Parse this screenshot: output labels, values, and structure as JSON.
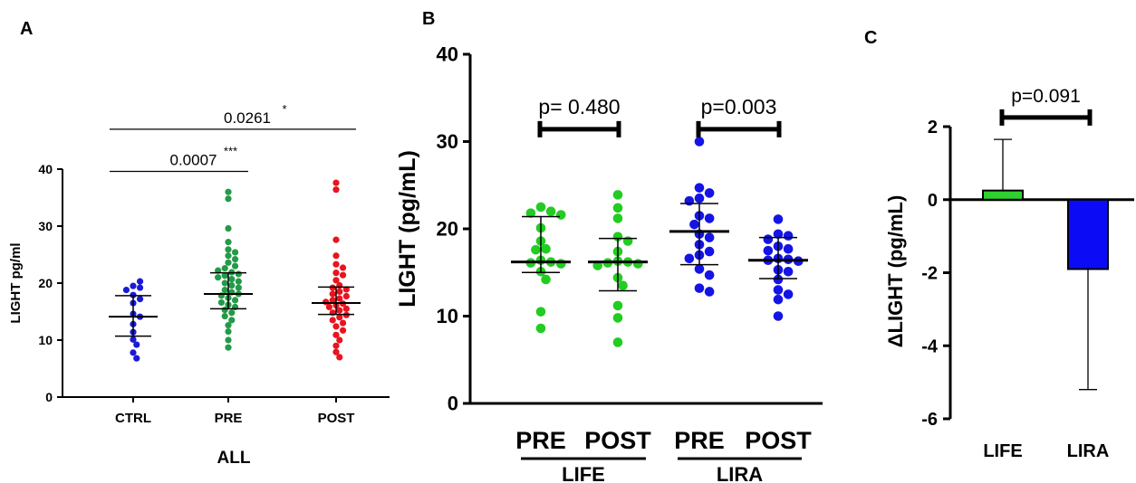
{
  "chart_data": [
    {
      "panel": "A",
      "type": "scatter",
      "xlabel": "ALL",
      "ylabel": "LIGHT pg/ml",
      "ylim": [
        0,
        40
      ],
      "yticks": [
        "0",
        "10",
        "20",
        "30",
        "40"
      ],
      "categories": [
        "CTRL",
        "PRE",
        "POST"
      ],
      "colors": [
        "#1a1ad6",
        "#239a48",
        "#e8141e"
      ],
      "series": [
        {
          "values": [
            19.5,
            20.3,
            19.2,
            18.8,
            17.9,
            17.2,
            16.5,
            14.6,
            14.1,
            12.8,
            11.4,
            10.1,
            9.2,
            7.8,
            6.8
          ],
          "median": 14.1,
          "iqr": [
            10.7,
            17.8
          ]
        },
        {
          "values": [
            36.0,
            34.8,
            29.6,
            27.2,
            25.9,
            25.4,
            24.8,
            24.2,
            23.6,
            23.0,
            22.6,
            22.2,
            21.9,
            21.6,
            21.3,
            21.0,
            20.7,
            20.3,
            20.0,
            19.6,
            19.2,
            18.8,
            18.4,
            18.1,
            17.8,
            17.4,
            17.0,
            16.6,
            16.2,
            15.8,
            15.3,
            14.8,
            14.2,
            13.5,
            12.6,
            11.5,
            10.0,
            8.7
          ],
          "median": 18.1,
          "iqr": [
            15.5,
            21.8
          ]
        },
        {
          "values": [
            37.6,
            36.4,
            27.6,
            24.8,
            23.3,
            22.7,
            21.8,
            21.4,
            20.5,
            19.6,
            19.2,
            18.9,
            18.5,
            18.1,
            17.7,
            17.3,
            17.0,
            16.7,
            16.4,
            16.1,
            15.8,
            15.5,
            15.2,
            14.8,
            14.4,
            14.0,
            13.5,
            13.0,
            12.4,
            11.7,
            10.9,
            10.0,
            9.0,
            7.9,
            7.0
          ],
          "median": 16.5,
          "iqr": [
            14.5,
            19.3
          ]
        }
      ],
      "annotations": [
        {
          "text": "0.0007",
          "star": "***",
          "from": 0,
          "to": 1,
          "y": 39.6
        },
        {
          "text": "0.0261",
          "star": "*",
          "from": 0,
          "to": 2,
          "y": 47.0
        }
      ]
    },
    {
      "panel": "B",
      "type": "scatter",
      "ylabel": "LIGHT (pg/mL)",
      "ylim": [
        0,
        40
      ],
      "yticks": [
        "0",
        "10",
        "20",
        "30",
        "40"
      ],
      "categories": [
        "PRE",
        "POST",
        "PRE",
        "POST"
      ],
      "groups": [
        "LIFE",
        "LIRA"
      ],
      "colors": [
        "#22cc22",
        "#22cc22",
        "#1414e6",
        "#1414e6"
      ],
      "series": [
        {
          "values": [
            22.5,
            22.0,
            21.8,
            21.6,
            20.1,
            18.6,
            17.7,
            17.6,
            16.4,
            16.2,
            16.1,
            16.0,
            15.1,
            14.2,
            10.5,
            8.6
          ],
          "median": 16.2,
          "iqr": [
            15.0,
            21.4
          ]
        },
        {
          "values": [
            23.9,
            22.4,
            21.2,
            19.1,
            18.6,
            17.4,
            16.3,
            16.2,
            16.1,
            16.0,
            15.8,
            14.4,
            13.5,
            11.2,
            9.8,
            7.0
          ],
          "median": 16.2,
          "iqr": [
            12.9,
            18.9
          ]
        },
        {
          "values": [
            30.0,
            24.7,
            24.1,
            23.5,
            23.2,
            21.5,
            21.2,
            20.5,
            19.4,
            19.0,
            18.2,
            17.4,
            17.0,
            16.6,
            15.4,
            14.7,
            13.2,
            12.8
          ],
          "median": 19.7,
          "iqr": [
            15.9,
            22.9
          ]
        },
        {
          "values": [
            21.1,
            19.4,
            19.2,
            18.8,
            18.0,
            17.7,
            17.5,
            16.6,
            16.5,
            16.4,
            16.3,
            15.3,
            15.1,
            14.2,
            13.0,
            12.5,
            11.9,
            10.0
          ],
          "median": 16.4,
          "iqr": [
            14.3,
            19.0
          ]
        }
      ],
      "annotations": [
        {
          "text": "p= 0.480",
          "from": 0,
          "to": 1,
          "y": 31.0
        },
        {
          "text": "p=0.003",
          "from": 2,
          "to": 3,
          "y": 31.0
        }
      ]
    },
    {
      "panel": "C",
      "type": "bar",
      "ylabel": "ΔLIGHT (pg/mL)",
      "ylim": [
        -6,
        2
      ],
      "yticks": [
        "2",
        "0",
        "-2",
        "-4",
        "-6"
      ],
      "categories": [
        "LIFE",
        "LIRA"
      ],
      "values": [
        0.25,
        -1.9
      ],
      "error": [
        1.4,
        3.3
      ],
      "colors": [
        "#2ed12e",
        "#0b0bf5"
      ],
      "annotation": {
        "text": "p=0.091",
        "from": 0,
        "to": 1,
        "y": 2.3
      }
    }
  ]
}
